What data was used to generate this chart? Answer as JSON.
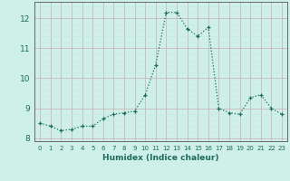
{
  "x": [
    0,
    1,
    2,
    3,
    4,
    5,
    6,
    7,
    8,
    9,
    10,
    11,
    12,
    13,
    14,
    15,
    16,
    17,
    18,
    19,
    20,
    21,
    22,
    23
  ],
  "y": [
    8.5,
    8.4,
    8.25,
    8.3,
    8.4,
    8.4,
    8.65,
    8.8,
    8.85,
    8.9,
    9.45,
    10.45,
    12.2,
    12.2,
    11.65,
    11.4,
    11.7,
    9.0,
    8.85,
    8.8,
    9.35,
    9.45,
    9.0,
    8.8
  ],
  "xlabel": "Humidex (Indice chaleur)",
  "ylim": [
    7.9,
    12.55
  ],
  "xlim": [
    -0.5,
    23.5
  ],
  "yticks": [
    8,
    9,
    10,
    11,
    12
  ],
  "xticks": [
    0,
    1,
    2,
    3,
    4,
    5,
    6,
    7,
    8,
    9,
    10,
    11,
    12,
    13,
    14,
    15,
    16,
    17,
    18,
    19,
    20,
    21,
    22,
    23
  ],
  "line_color": "#1a6b5a",
  "bg_color": "#cef0e8",
  "grid_minor_color": "#c8e8e0",
  "grid_major_color": "#c8b8b8"
}
